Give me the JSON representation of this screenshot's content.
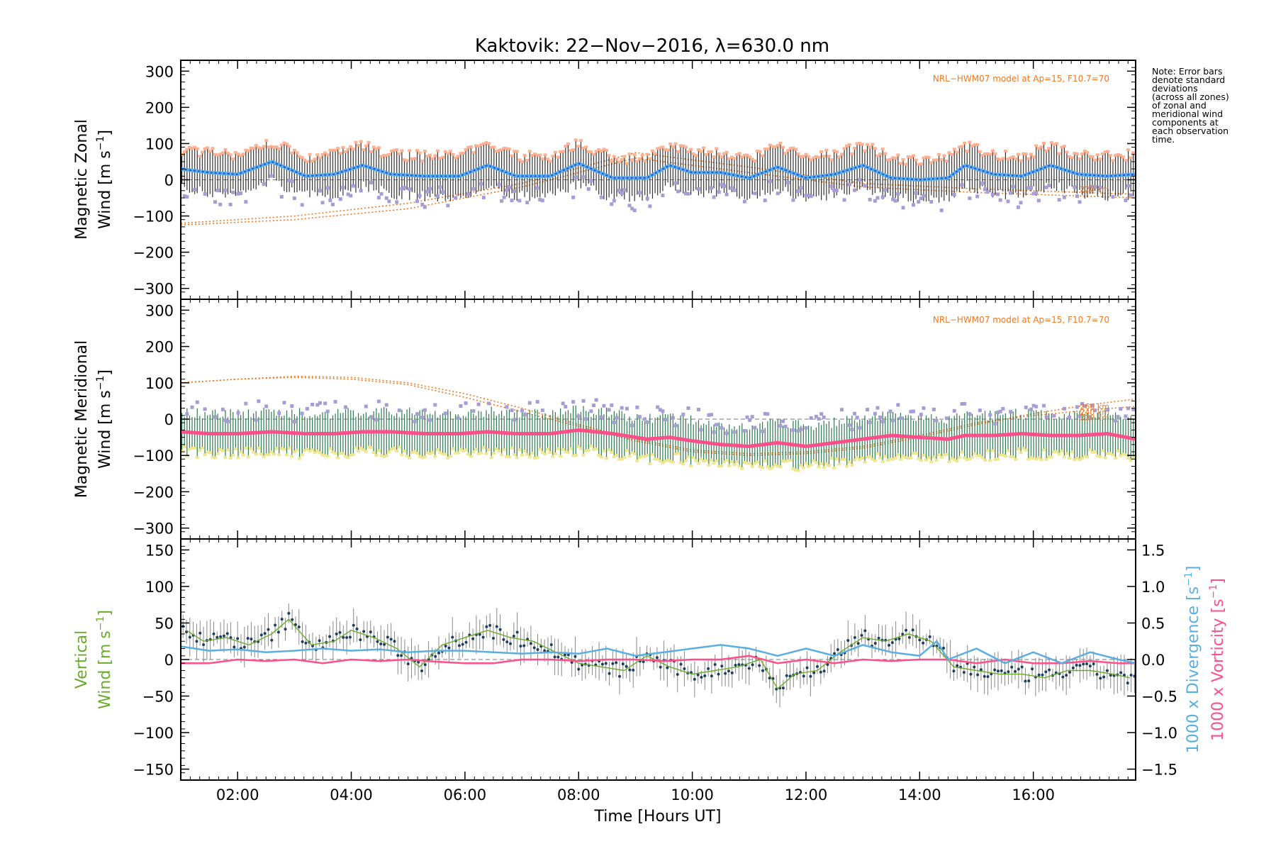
{
  "chart_data": [
    {
      "type": "line",
      "panel": "zonal",
      "title": "Kaktovik: 22−Nov−2016, λ=630.0 nm",
      "ylabel_line1": "Magnetic Zonal",
      "ylabel_line2": "Wind [m s",
      "ylabel_sup": "−1",
      "ylabel_close": "]",
      "ylim": [
        -330,
        330
      ],
      "yticks": [
        300,
        200,
        100,
        0,
        -100,
        -200,
        -300
      ],
      "xlim": [
        1.0,
        17.8
      ],
      "model_note": "NRL−HWM07 model at Ap=15, F10.7=70",
      "model_alt_labels": [
        "220 km"
      ],
      "mean_x": [
        1.0,
        1.5,
        2.0,
        2.6,
        3.2,
        3.7,
        4.2,
        4.7,
        5.3,
        5.9,
        6.4,
        6.9,
        7.5,
        8.0,
        8.6,
        9.2,
        9.6,
        10.0,
        10.5,
        11.0,
        11.5,
        12.0,
        12.5,
        13.0,
        13.5,
        14.0,
        14.5,
        14.8,
        15.3,
        15.8,
        16.3,
        16.8,
        17.3,
        17.8
      ],
      "mean_y": [
        30,
        20,
        15,
        50,
        10,
        15,
        40,
        15,
        10,
        10,
        40,
        10,
        10,
        45,
        5,
        5,
        40,
        20,
        20,
        5,
        35,
        5,
        15,
        40,
        5,
        0,
        5,
        40,
        15,
        10,
        40,
        15,
        10,
        15
      ],
      "model_curves": [
        {
          "x": [
            1.0,
            3.0,
            5.0,
            7.0,
            9.0,
            11.0,
            13.0,
            15.0,
            17.8
          ],
          "y": [
            -125,
            -110,
            -80,
            -20,
            60,
            20,
            -20,
            -35,
            -50
          ]
        },
        {
          "x": [
            1.0,
            3.0,
            5.0,
            7.0,
            9.0,
            11.0,
            13.0,
            15.0,
            17.8
          ],
          "y": [
            -120,
            -100,
            -65,
            -10,
            75,
            35,
            -10,
            -25,
            -40
          ]
        }
      ]
    },
    {
      "type": "line",
      "panel": "meridional",
      "ylabel_line1": "Magnetic Meridional",
      "ylabel_line2": "Wind [m s",
      "ylabel_sup": "−1",
      "ylabel_close": "]",
      "ylim": [
        -330,
        330
      ],
      "yticks": [
        300,
        200,
        100,
        0,
        -100,
        -200,
        -300
      ],
      "xlim": [
        1.0,
        17.8
      ],
      "model_note": "NRL−HWM07 model at Ap=15, F10.7=70",
      "model_alt_labels": [
        "260 km",
        "240 km",
        "220 km"
      ],
      "mean_x": [
        1.0,
        1.5,
        2.0,
        2.6,
        3.2,
        3.7,
        4.2,
        4.7,
        5.3,
        5.9,
        6.4,
        6.9,
        7.5,
        8.0,
        8.6,
        9.2,
        9.6,
        10.0,
        10.5,
        11.0,
        11.5,
        12.0,
        12.5,
        13.0,
        13.5,
        14.0,
        14.5,
        14.8,
        15.3,
        15.8,
        16.3,
        16.8,
        17.3,
        17.8
      ],
      "mean_y": [
        -35,
        -40,
        -40,
        -35,
        -40,
        -40,
        -35,
        -35,
        -40,
        -40,
        -35,
        -40,
        -40,
        -30,
        -40,
        -55,
        -50,
        -60,
        -70,
        -75,
        -65,
        -75,
        -65,
        -55,
        -45,
        -50,
        -55,
        -45,
        -45,
        -40,
        -45,
        -45,
        -40,
        -55
      ],
      "model_curves": [
        {
          "x": [
            1.0,
            2.0,
            3.0,
            4.0,
            5.0,
            6.0,
            7.0,
            8.0,
            9.0,
            10.0,
            11.0,
            12.0,
            13.0,
            14.0,
            15.0,
            16.0,
            17.0,
            17.8
          ],
          "y": [
            100,
            110,
            115,
            110,
            95,
            60,
            20,
            -20,
            -60,
            -90,
            -100,
            -95,
            -80,
            -50,
            -15,
            15,
            40,
            55
          ]
        },
        {
          "x": [
            1.0,
            2.0,
            3.0,
            4.0,
            5.0,
            6.0,
            7.0,
            8.0,
            9.0,
            10.0,
            11.0,
            12.0,
            13.0,
            14.0,
            15.0,
            16.0,
            17.0,
            17.8
          ],
          "y": [
            100,
            110,
            118,
            115,
            100,
            70,
            30,
            -15,
            -55,
            -85,
            -95,
            -90,
            -75,
            -45,
            -10,
            10,
            25,
            35
          ]
        }
      ]
    },
    {
      "type": "line",
      "panel": "vertical",
      "ylabel_line1": "Vertical",
      "ylabel_line2": "Wind [m s",
      "ylabel_sup": "−1",
      "ylabel_close": "]",
      "ylim": [
        -165,
        165
      ],
      "yticks": [
        150,
        100,
        50,
        0,
        -50,
        -100,
        -150
      ],
      "y2lim": [
        -1.65,
        1.65
      ],
      "y2ticks": [
        1.5,
        1.0,
        0.5,
        0.0,
        -0.5,
        -1.0,
        -1.5
      ],
      "y2tick_labels": [
        "1.5",
        "1.0",
        "0.5",
        "0.0",
        "−0.5",
        "−1.0",
        "−1.5"
      ],
      "y2label_div": "1000 x Divergence [s",
      "y2label_vor": "1000 x Vorticity [s",
      "y2label_sup": "−1",
      "y2label_close": "]",
      "xlabel": "Time [Hours UT]",
      "xlim": [
        1.0,
        17.8
      ],
      "xticks": [
        2,
        4,
        6,
        8,
        10,
        12,
        14,
        16
      ],
      "xtick_labels": [
        "02:00",
        "04:00",
        "06:00",
        "08:00",
        "10:00",
        "12:00",
        "14:00",
        "16:00"
      ],
      "divergence_x": [
        1.0,
        1.5,
        2.0,
        2.5,
        3.0,
        3.5,
        4.0,
        4.5,
        5.0,
        5.5,
        6.0,
        6.5,
        7.0,
        7.5,
        8.0,
        8.5,
        9.0,
        9.5,
        10.0,
        10.5,
        11.0,
        11.5,
        12.0,
        12.5,
        13.0,
        13.5,
        14.0,
        14.3,
        14.5,
        15.0,
        15.5,
        16.0,
        16.5,
        17.0,
        17.5,
        17.8
      ],
      "divergence_y": [
        0.18,
        0.12,
        0.14,
        0.1,
        0.12,
        0.15,
        0.12,
        0.14,
        0.1,
        0.12,
        0.12,
        0.1,
        0.08,
        0.1,
        0.08,
        0.15,
        0.05,
        0.1,
        0.15,
        0.2,
        0.15,
        0.05,
        0.15,
        0.05,
        0.2,
        0.1,
        0.05,
        0.25,
        0.0,
        0.15,
        -0.05,
        0.1,
        -0.05,
        0.1,
        0.0,
        -0.05
      ],
      "vorticity_x": [
        1.0,
        1.5,
        2.0,
        2.5,
        3.0,
        3.5,
        4.0,
        4.5,
        5.0,
        5.5,
        6.0,
        6.5,
        7.0,
        7.5,
        8.0,
        8.5,
        9.0,
        9.5,
        10.0,
        10.5,
        11.0,
        11.5,
        12.0,
        12.5,
        13.0,
        13.5,
        14.0,
        14.5,
        15.0,
        15.5,
        16.0,
        16.5,
        17.0,
        17.5,
        17.8
      ],
      "vorticity_y": [
        -0.05,
        -0.05,
        0.0,
        -0.02,
        0.0,
        -0.05,
        0.0,
        -0.02,
        0.0,
        -0.03,
        -0.05,
        -0.05,
        0.0,
        0.0,
        -0.02,
        0.0,
        0.0,
        -0.02,
        0.0,
        0.0,
        0.05,
        -0.05,
        0.0,
        -0.05,
        0.0,
        -0.02,
        0.0,
        0.0,
        -0.05,
        0.0,
        -0.05,
        -0.05,
        -0.02,
        -0.05,
        -0.05
      ],
      "wind_x": [
        1.1,
        1.4,
        1.8,
        2.2,
        2.6,
        2.9,
        3.3,
        3.7,
        4.0,
        4.4,
        4.8,
        5.2,
        5.6,
        6.0,
        6.4,
        6.8,
        7.2,
        7.6,
        8.0,
        8.4,
        8.8,
        9.2,
        9.6,
        10.0,
        10.4,
        10.8,
        11.2,
        11.5,
        11.8,
        12.2,
        12.6,
        13.0,
        13.4,
        13.8,
        14.2,
        14.6,
        15.0,
        15.4,
        15.8,
        16.2,
        16.6,
        17.0,
        17.4,
        17.7
      ],
      "wind_y": [
        40,
        25,
        30,
        20,
        35,
        55,
        20,
        25,
        40,
        30,
        15,
        -10,
        20,
        30,
        40,
        30,
        25,
        10,
        -5,
        -10,
        -15,
        5,
        -10,
        -20,
        -15,
        -10,
        0,
        -40,
        -20,
        -15,
        10,
        30,
        25,
        35,
        25,
        -10,
        -15,
        -20,
        -20,
        -25,
        -15,
        -15,
        -20,
        -25
      ]
    }
  ],
  "note_lines": [
    "Note: Error bars",
    "denote standard",
    "deviations",
    "(across all zones)",
    "of zonal and",
    "meridional wind",
    "components at",
    "each observation",
    "time."
  ],
  "colors": {
    "axes": "#000000",
    "zonal_mean": "#1f4fe0",
    "zonal_mean_light": "#5aaee8",
    "meridional_mean": "#ff4f8a",
    "model": "#f07820",
    "vertical": "#6aaa2a",
    "divergence": "#5aaee0",
    "vorticity": "#ff4f8a",
    "scatter": "#a89cd6",
    "errbar": "#333333",
    "errbar_warm": "#ffb090",
    "errbar_yellow": "#f0e690",
    "errbar_green": "#2e7a50"
  }
}
